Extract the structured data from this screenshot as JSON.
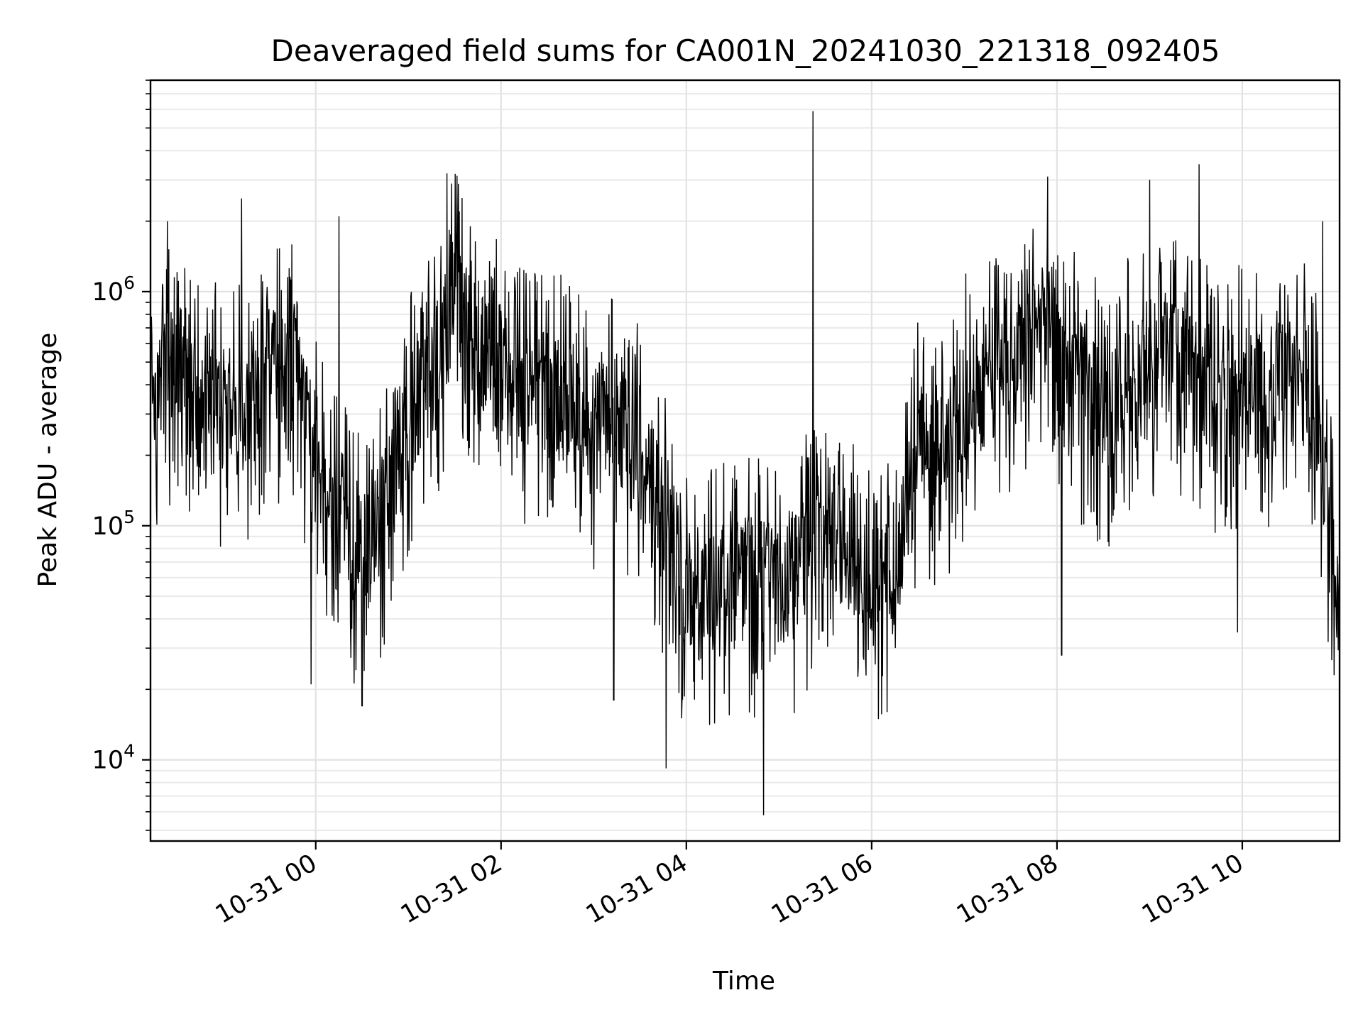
{
  "chart_data": {
    "type": "line",
    "title": "Deaveraged field sums for CA001N_20241030_221318_092405",
    "xlabel": "Time",
    "ylabel": "Peak ADU - average",
    "y_scale": "log",
    "xlim": [
      "2024-10-30 22:13",
      "2024-10-31 11:03"
    ],
    "ylim": [
      4500,
      8000000
    ],
    "grid": "on (x major, y major and minor)",
    "x_ticks": [
      {
        "at": "2024-10-31 00:00",
        "label": "10-31 00"
      },
      {
        "at": "2024-10-31 02:00",
        "label": "10-31 02"
      },
      {
        "at": "2024-10-31 04:00",
        "label": "10-31 04"
      },
      {
        "at": "2024-10-31 06:00",
        "label": "10-31 06"
      },
      {
        "at": "2024-10-31 08:00",
        "label": "10-31 08"
      },
      {
        "at": "2024-10-31 10:00",
        "label": "10-31 10"
      }
    ],
    "y_ticks": [
      {
        "value": 10000,
        "base": "10",
        "exp": "4"
      },
      {
        "value": 100000,
        "base": "10",
        "exp": "5"
      },
      {
        "value": 1000000,
        "base": "10",
        "exp": "6"
      }
    ],
    "line_color": "#000000",
    "series": [
      {
        "values_note_hidden": "",
        "x": [
          "2024-10-30 22:13",
          "2024-10-30 22:30",
          "2024-10-30 22:45",
          "2024-10-30 23:00",
          "2024-10-30 23:15",
          "2024-10-30 23:30",
          "2024-10-30 23:45",
          "2024-10-31 00:00",
          "2024-10-31 00:15",
          "2024-10-31 00:30",
          "2024-10-31 00:45",
          "2024-10-31 01:00",
          "2024-10-31 01:15",
          "2024-10-31 01:30",
          "2024-10-31 01:45",
          "2024-10-31 02:00",
          "2024-10-31 02:15",
          "2024-10-31 02:30",
          "2024-10-31 02:45",
          "2024-10-31 03:00",
          "2024-10-31 03:15",
          "2024-10-31 03:30",
          "2024-10-31 03:45",
          "2024-10-31 04:00",
          "2024-10-31 04:15",
          "2024-10-31 04:30",
          "2024-10-31 04:45",
          "2024-10-31 05:00",
          "2024-10-31 05:15",
          "2024-10-31 05:30",
          "2024-10-31 05:45",
          "2024-10-31 06:00",
          "2024-10-31 06:15",
          "2024-10-31 06:30",
          "2024-10-31 06:45",
          "2024-10-31 07:00",
          "2024-10-31 07:15",
          "2024-10-31 07:30",
          "2024-10-31 07:45",
          "2024-10-31 08:00",
          "2024-10-31 08:15",
          "2024-10-31 08:30",
          "2024-10-31 08:45",
          "2024-10-31 09:00",
          "2024-10-31 09:15",
          "2024-10-31 09:30",
          "2024-10-31 09:45",
          "2024-10-31 10:00",
          "2024-10-31 10:15",
          "2024-10-31 10:30",
          "2024-10-31 10:45",
          "2024-10-31 11:03"
        ],
        "y": [
          350000,
          500000,
          300000,
          320000,
          300000,
          480000,
          450000,
          180000,
          120000,
          70000,
          120000,
          280000,
          400000,
          1000000,
          450000,
          480000,
          350000,
          400000,
          300000,
          250000,
          280000,
          200000,
          110000,
          50000,
          50000,
          60000,
          60000,
          50000,
          70000,
          100000,
          80000,
          60000,
          50000,
          250000,
          200000,
          350000,
          400000,
          450000,
          600000,
          500000,
          400000,
          300000,
          400000,
          450000,
          500000,
          400000,
          350000,
          400000,
          350000,
          450000,
          400000,
          50000
        ],
        "spike_up": [
          {
            "x": "2024-10-30 22:24",
            "y": 2000000
          },
          {
            "x": "2024-10-30 23:12",
            "y": 2500000
          },
          {
            "x": "2024-10-30 23:57",
            "y": 21000
          },
          {
            "x": "2024-10-31 00:15",
            "y": 2100000
          },
          {
            "x": "2024-10-31 00:30",
            "y": 17000
          },
          {
            "x": "2024-10-31 01:25",
            "y": 3200000
          },
          {
            "x": "2024-10-31 01:40",
            "y": 1900000
          },
          {
            "x": "2024-10-31 03:13",
            "y": 18000
          },
          {
            "x": "2024-10-31 03:47",
            "y": 9200
          },
          {
            "x": "2024-10-31 04:50",
            "y": 5800
          },
          {
            "x": "2024-10-31 05:22",
            "y": 5900000
          },
          {
            "x": "2024-10-31 06:10",
            "y": 16000
          },
          {
            "x": "2024-10-31 07:54",
            "y": 3100000
          },
          {
            "x": "2024-10-31 08:03",
            "y": 28000
          },
          {
            "x": "2024-10-31 09:00",
            "y": 3000000
          },
          {
            "x": "2024-10-31 09:32",
            "y": 3500000
          },
          {
            "x": "2024-10-31 09:57",
            "y": 35000
          },
          {
            "x": "2024-10-31 10:52",
            "y": 2000000
          }
        ]
      }
    ]
  }
}
